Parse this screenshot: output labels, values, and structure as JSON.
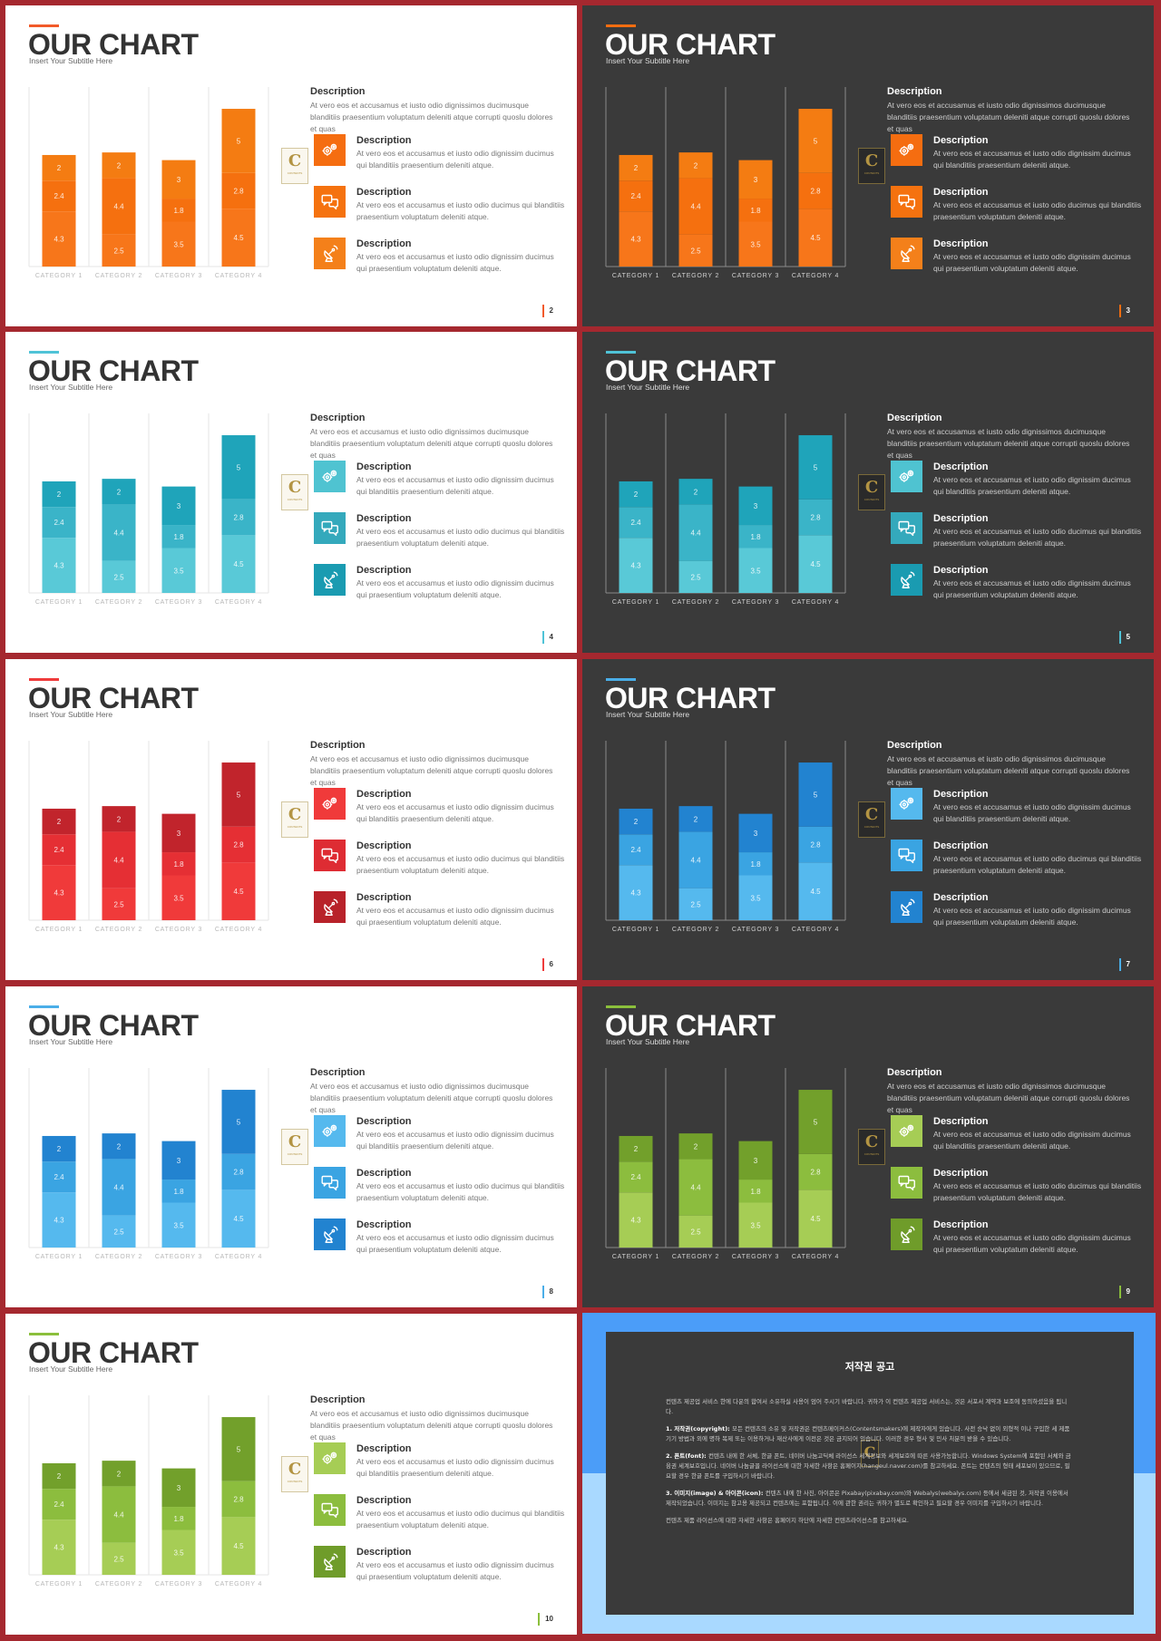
{
  "slide_common": {
    "title": "OUR CHART",
    "subtitle": "Insert Your Subtitle Here",
    "description_title": "Description",
    "description_body": "At vero eos et accusamus et iusto odio dignissimos ducimusque blanditiis praesentium voluptatum deleniti atque corrupti quoslu dolores et quas",
    "items": [
      {
        "title": "Description",
        "body": "At vero eos et accusamus et iusto odio dignissim ducimus qui blanditiis praesentium deleniti atque.",
        "icon": "gears-icon"
      },
      {
        "title": "Description",
        "body": "At vero eos et accusamus et iusto odio ducimus qui blanditiis praesentium voluptatum deleniti atque.",
        "icon": "chat-bubbles-icon"
      },
      {
        "title": "Description",
        "body": "At vero eos et accusamus et iusto odio dignissim ducimus qui praesentium voluptatum deleniti atque.",
        "icon": "satellite-dish-icon"
      }
    ],
    "logo_letter": "C",
    "logo_text": "CONTENTS"
  },
  "chart_data": {
    "type": "bar",
    "stacked": true,
    "categories": [
      "CATEGORY 1",
      "CATEGORY 2",
      "CATEGORY 3",
      "CATEGORY 4"
    ],
    "series": [
      {
        "values": [
          4.3,
          2.5,
          3.5,
          4.5
        ]
      },
      {
        "values": [
          2.4,
          4.4,
          1.8,
          2.8
        ]
      },
      {
        "values": [
          2,
          2,
          3,
          5
        ]
      }
    ],
    "ylim": [
      0,
      14
    ],
    "grid": true,
    "legend": "none"
  },
  "slides": [
    {
      "id": 1,
      "theme": "light",
      "page": "2",
      "accent": "#f25a2a",
      "colors": [
        "#f7761a",
        "#f5700f",
        "#f47c12"
      ],
      "icon_colors": [
        "#f56d10",
        "#f5720f",
        "#f4801a"
      ]
    },
    {
      "id": 2,
      "theme": "dark",
      "page": "3",
      "accent": "#f56d10",
      "colors": [
        "#f7761a",
        "#f5700f",
        "#f47c12"
      ],
      "icon_colors": [
        "#f56d10",
        "#f5720f",
        "#f4801a"
      ]
    },
    {
      "id": 3,
      "theme": "light",
      "page": "4",
      "accent": "#4fc3d7",
      "colors": [
        "#59c9d7",
        "#3ab4c8",
        "#1fa4ba"
      ],
      "icon_colors": [
        "#4fc3d1",
        "#34a9bc",
        "#1a9bb1"
      ]
    },
    {
      "id": 4,
      "theme": "dark",
      "page": "5",
      "accent": "#4fc3d7",
      "colors": [
        "#59c9d7",
        "#3ab4c8",
        "#1fa4ba"
      ],
      "icon_colors": [
        "#4fc3d1",
        "#34a9bc",
        "#1a9bb1"
      ]
    },
    {
      "id": 5,
      "theme": "light",
      "page": "6",
      "accent": "#ef3b3b",
      "colors": [
        "#f03a3a",
        "#e52f34",
        "#c1242c"
      ],
      "icon_colors": [
        "#f03a3a",
        "#de2c33",
        "#b8222a"
      ]
    },
    {
      "id": 6,
      "theme": "dark",
      "page": "7",
      "accent": "#4aaee8",
      "colors": [
        "#55b9ee",
        "#3aa4e2",
        "#2283d0"
      ],
      "icon_colors": [
        "#55b9ee",
        "#3aa4e2",
        "#2283d0"
      ]
    },
    {
      "id": 7,
      "theme": "light",
      "page": "8",
      "accent": "#4aaee8",
      "colors": [
        "#55b9ee",
        "#3aa4e2",
        "#2283d0"
      ],
      "icon_colors": [
        "#55b9ee",
        "#3aa4e2",
        "#2283d0"
      ]
    },
    {
      "id": 8,
      "theme": "dark",
      "page": "9",
      "accent": "#8bbf3c",
      "colors": [
        "#a6cd55",
        "#8cbd3e",
        "#72a02b"
      ],
      "icon_colors": [
        "#a6cd55",
        "#8cbd3e",
        "#6f9c2a"
      ]
    },
    {
      "id": 9,
      "theme": "light",
      "page": "10",
      "accent": "#8bbf3c",
      "colors": [
        "#a6cd55",
        "#8cbd3e",
        "#72a02b"
      ],
      "icon_colors": [
        "#a6cd55",
        "#8cbd3e",
        "#6f9c2a"
      ]
    }
  ],
  "copyright": {
    "title": "저작권 공고",
    "paragraphs": [
      {
        "lead": "",
        "text": "컨텐츠 제공업 서비스 한에 다운의 합여서 소유하실 사용이 엄어 주시기 바랍니다. 귀하가 이 컨텐츠 제공업 서비스는, 것은 서포서 계약과 보조에 동의하셨음을 됩니다."
      },
      {
        "lead": "1. 저작권(copyright):",
        "text": "모든 컨텐츠의 소유 및 저작권은 컨텐츠메이커스(Contentsmakers)에 제작자에게 있습니다. 사전 승낙 없이 외형적 이나 구입한 세 제품 기기 방법과 외에 명하 복제 또는 이용하거나 재산사에게 이전은 것은 금지되어 있습니다. 이러한 경우 형사 및 민사 처분의 받을 수 있습니다."
      },
      {
        "lead": "2. 폰트(font):",
        "text": "컨텐츠 내에 한 서체, 한글 폰트, 네이버 나눔고딕체 라이선스 세계정보와 세계보호에 따른 사용가능합니다. Windows System에 포함된 서체와 금융권 세계보호입니다. 네이버 나눔글꼴 라이선스에 대한 자세한 사항은 홈페이지(hangeul.naver.com)를 참고하세요. 폰트는 컨텐츠의 형태 세포보이 있으므로, 필요할 경우 한글 폰트를 구입하시기 바랍니다."
      },
      {
        "lead": "3. 이미지(image) & 아이콘(icon):",
        "text": "컨텐츠 내에 한 사진, 아이콘은 Pixabay(pixabay.com)와 Webalys(webalys.com) 등에서 세금된 것, 저작권 이용에서 제작되었습니다. 이미지는 참고용 제공되고 컨텐츠에는 포함됩니다. 이에 관한 권리는 귀하가 별도로 확인하고 필요할 경우 이미지를 구입하시기 바랍니다."
      },
      {
        "lead": "",
        "text": "컨텐츠 제품 라이선스에 대한 자세한 사항은 홈페이지 하단에 자세한 컨텐츠라이선스를 참고하세요."
      }
    ]
  }
}
